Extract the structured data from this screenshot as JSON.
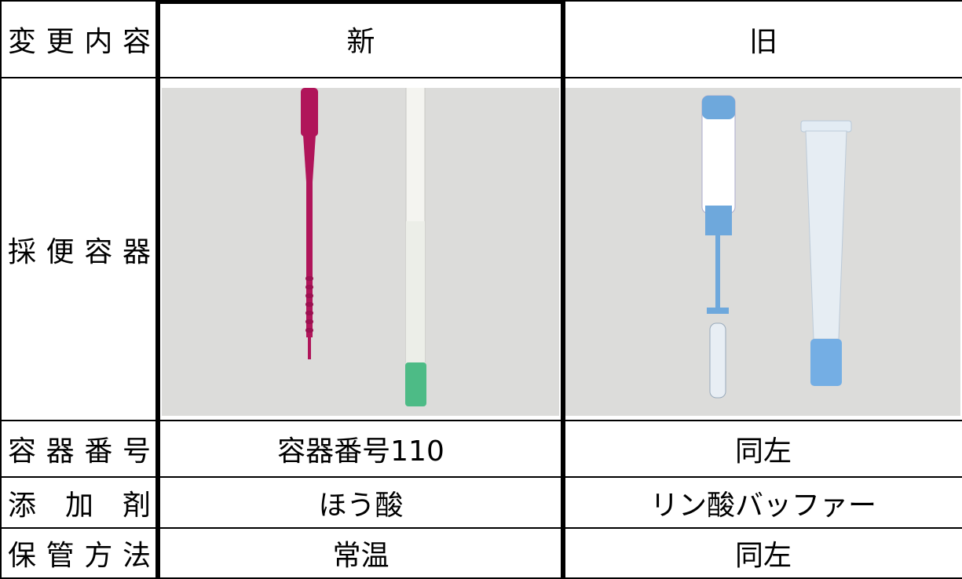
{
  "table": {
    "header": [
      "変更内容",
      "新",
      "旧"
    ],
    "rows": [
      [
        "採便容器"
      ],
      [
        "容器番号",
        "容器番号110",
        "同左"
      ],
      [
        "添加剤",
        "ほう酸",
        "リン酸バッファー"
      ],
      [
        "保管方法",
        "常温",
        "同左"
      ]
    ]
  }
}
